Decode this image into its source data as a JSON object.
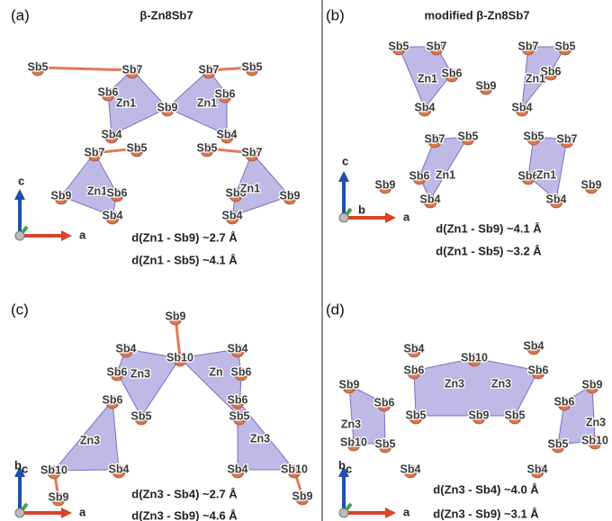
{
  "panels": [
    {
      "label": "(a)",
      "title": "β-Zn8Sb7",
      "atoms": [
        "Sb5",
        "Sb7",
        "Sb7",
        "Sb5",
        "Sb6",
        "Zn1",
        "Sb9",
        "Zn1",
        "Sb6",
        "Sb4",
        "Sb4",
        "Sb7",
        "Sb5",
        "Sb5",
        "Sb7",
        "Sb9",
        "Zn1",
        "Sb6",
        "Sb6",
        "Zn1",
        "Sb9",
        "Sb4",
        "Sb4"
      ],
      "axes": [
        "c",
        "a"
      ],
      "distances": [
        "d(Zn1 - Sb9) ~2.7 Å",
        "d(Zn1 - Sb5) ~4.1 Å"
      ]
    },
    {
      "label": "(b)",
      "title": "modified β-Zn8Sb7",
      "atoms": [
        "Sb5",
        "Sb7",
        "Sb6",
        "Zn1",
        "Sb9",
        "Sb7",
        "Sb5",
        "Sb6",
        "Zn1",
        "Sb4",
        "Sb4",
        "Sb7",
        "Sb5",
        "Sb5",
        "Sb7",
        "Sb9",
        "Sb6",
        "Zn1",
        "Sb6",
        "Zn1",
        "Sb9",
        "Sb4",
        "Sb4"
      ],
      "axes": [
        "c",
        "b",
        "a"
      ],
      "distances": [
        "d(Zn1 - Sb9) ~4.1 Å",
        "d(Zn1 - Sb5) ~3.2 Å"
      ]
    },
    {
      "label": "(c)",
      "atoms": [
        "Sb9",
        "Sb4",
        "Sb10",
        "Sb4",
        "Sb6",
        "Zn3",
        "Zn",
        "Sb6",
        "Sb5",
        "Sb5",
        "Sb6",
        "Sb6",
        "Zn3",
        "Zn3",
        "Sb10",
        "Sb10",
        "Sb9",
        "Sb9",
        "Sb4",
        "Sb4"
      ],
      "axes": [
        "b",
        "c",
        "a"
      ],
      "distances": [
        "d(Zn3 - Sb4) ~2.7 Å",
        "d(Zn3 - Sb9) ~4.6 Å"
      ]
    },
    {
      "label": "(d)",
      "atoms": [
        "Sb4",
        "Sb4",
        "Sb10",
        "Sb6",
        "Zn3",
        "Zn3",
        "Sb6",
        "Sb9",
        "Sb9",
        "Sb6",
        "Sb6",
        "Sb5",
        "Sb9",
        "Sb5",
        "Zn3",
        "Zn3",
        "Sb10",
        "Sb5",
        "Sb5",
        "Sb10",
        "Sb4",
        "Sb4"
      ],
      "axes": [
        "b",
        "c",
        "a"
      ],
      "distances": [
        "d(Zn3 - Sb4) ~4.0 Å",
        "d(Zn3 - Sb9) ~3.1 Å"
      ]
    }
  ]
}
